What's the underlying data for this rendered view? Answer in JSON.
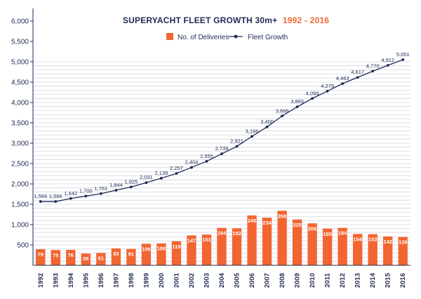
{
  "colors": {
    "bars": "#f26531",
    "line": "#1f2a55",
    "grid": "#8d93b0",
    "axis": "#1f2a55",
    "title_accent": "#f26531"
  },
  "chart_data": {
    "type": "bar",
    "title": "SUPERYACHT  FLEET GROWTH 30m+",
    "title_range": "1992 - 2016",
    "legend_position": "top-center",
    "grid": true,
    "xlabel": "",
    "ylabel": "",
    "ylim": [
      0,
      6000
    ],
    "yticks": [
      500,
      1000,
      1500,
      2000,
      2500,
      3000,
      3500,
      4000,
      4500,
      5000,
      5500,
      6000
    ],
    "ytick_labels": [
      "500",
      "1,000",
      "1,500",
      "2,000",
      "2,500",
      "3,000",
      "3,500",
      "4,000",
      "4,500",
      "5,000",
      "5,500",
      "6,000"
    ],
    "categories": [
      "1992",
      "1993",
      "1994",
      "1995",
      "1996",
      "1997",
      "1998",
      "1999",
      "2000",
      "2001",
      "2002",
      "2003",
      "2004",
      "2005",
      "2006",
      "2007",
      "2008",
      "2009",
      "2010",
      "2011",
      "2012",
      "2013",
      "2014",
      "2015",
      "2016"
    ],
    "series": [
      {
        "name": "No. of Deliveries",
        "type": "bar",
        "value_scale": 5,
        "values": [
          79,
          75,
          76,
          58,
          61,
          83,
          81,
          106,
          108,
          118,
          147,
          151,
          184,
          182,
          245,
          234,
          268,
          225,
          206,
          180,
          184,
          154,
          153,
          142,
          139
        ],
        "labels": [
          "79",
          "75",
          "76",
          "58",
          "61",
          "83",
          "81",
          "106",
          "108",
          "118",
          "147",
          "151",
          "184",
          "182",
          "245",
          "234",
          "268",
          "225",
          "206",
          "180",
          "184",
          "154",
          "153",
          "142",
          "139"
        ]
      },
      {
        "name": "Fleet Growth",
        "type": "line",
        "values": [
          1566,
          1566,
          1642,
          1700,
          1761,
          1844,
          1925,
          2031,
          2139,
          2257,
          2404,
          2555,
          2739,
          2921,
          3166,
          3400,
          3668,
          3893,
          4099,
          4279,
          4463,
          4617,
          4770,
          4912,
          5051
        ],
        "labels": [
          "1,566",
          "1,566",
          "1,642",
          "1,700",
          "1,761",
          "1,844",
          "1,925",
          "2,031",
          "2,139",
          "2,257",
          "2,404",
          "2,555",
          "2,739",
          "2,921",
          "3,166",
          "3,400",
          "3,668",
          "3,893",
          "4,099",
          "4,279",
          "4,463",
          "4,617",
          "4,770",
          "4,912",
          "5,051"
        ]
      }
    ]
  }
}
